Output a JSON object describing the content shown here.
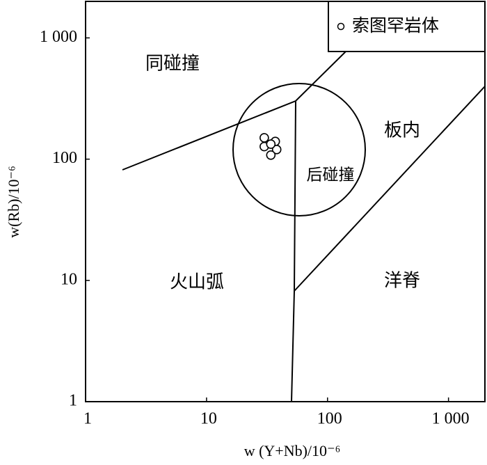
{
  "chart_data": {
    "type": "scatter",
    "x_label": "w (Y+Nb)/10⁻⁶",
    "y_label": "w(Rb)/10⁻⁶",
    "log_x": true,
    "log_y": true,
    "xlim": [
      1,
      2000
    ],
    "ylim": [
      1,
      2000
    ],
    "xticks": [
      1,
      10,
      100,
      {
        "value": 1000,
        "label": "1 000"
      }
    ],
    "yticks": [
      1,
      10,
      100,
      {
        "value": 1000,
        "label": "1 000"
      }
    ],
    "legend_position": "upper right",
    "annotations": [
      "同碰撞",
      "板内",
      "后碰撞",
      "火山弧",
      "洋脊"
    ],
    "series": [
      {
        "name": "索图罕岩体",
        "color": "#000000",
        "x": [
          30,
          37,
          30,
          38,
          34,
          34
        ],
        "values": [
          150,
          140,
          127,
          120,
          108,
          133
        ]
      }
    ]
  }
}
